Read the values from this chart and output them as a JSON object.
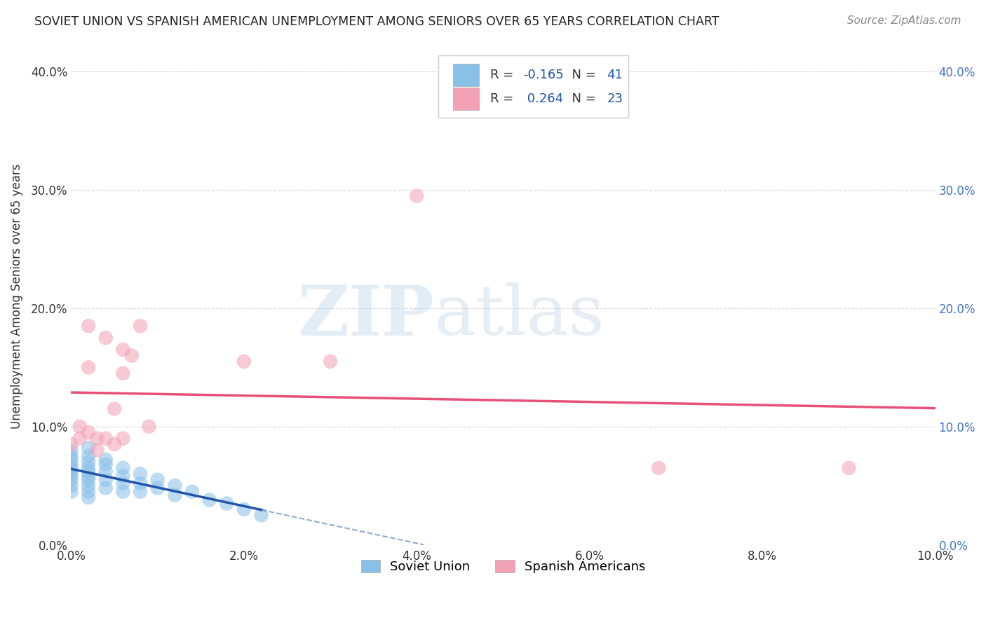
{
  "title": "SOVIET UNION VS SPANISH AMERICAN UNEMPLOYMENT AMONG SENIORS OVER 65 YEARS CORRELATION CHART",
  "source": "Source: ZipAtlas.com",
  "ylabel": "Unemployment Among Seniors over 65 years",
  "xlim": [
    0.0,
    0.1
  ],
  "ylim": [
    0.0,
    0.42
  ],
  "xticks": [
    0.0,
    0.02,
    0.04,
    0.06,
    0.08,
    0.1
  ],
  "yticks": [
    0.0,
    0.1,
    0.2,
    0.3,
    0.4
  ],
  "soviet_R": -0.165,
  "soviet_N": 41,
  "spanish_R": 0.264,
  "spanish_N": 23,
  "soviet_color": "#88c0e8",
  "spanish_color": "#f4a0b5",
  "soviet_line_color": "#2255aa",
  "spanish_line_color": "#e8507a",
  "soviet_scatter_x": [
    0.0,
    0.0,
    0.0,
    0.0,
    0.0,
    0.0,
    0.0,
    0.0,
    0.0,
    0.0,
    0.002,
    0.002,
    0.002,
    0.002,
    0.002,
    0.002,
    0.002,
    0.002,
    0.002,
    0.002,
    0.004,
    0.004,
    0.004,
    0.004,
    0.004,
    0.006,
    0.006,
    0.006,
    0.006,
    0.008,
    0.008,
    0.008,
    0.01,
    0.01,
    0.012,
    0.012,
    0.014,
    0.016,
    0.018,
    0.02,
    0.022
  ],
  "soviet_scatter_y": [
    0.08,
    0.075,
    0.072,
    0.068,
    0.065,
    0.062,
    0.058,
    0.055,
    0.05,
    0.045,
    0.082,
    0.075,
    0.07,
    0.065,
    0.062,
    0.058,
    0.055,
    0.05,
    0.045,
    0.04,
    0.072,
    0.068,
    0.062,
    0.055,
    0.048,
    0.065,
    0.058,
    0.052,
    0.045,
    0.06,
    0.052,
    0.045,
    0.055,
    0.048,
    0.05,
    0.042,
    0.045,
    0.038,
    0.035,
    0.03,
    0.025
  ],
  "spanish_scatter_x": [
    0.0,
    0.001,
    0.001,
    0.002,
    0.002,
    0.002,
    0.003,
    0.003,
    0.004,
    0.004,
    0.005,
    0.005,
    0.006,
    0.006,
    0.006,
    0.007,
    0.008,
    0.009,
    0.02,
    0.03,
    0.04,
    0.068,
    0.09
  ],
  "spanish_scatter_y": [
    0.085,
    0.1,
    0.09,
    0.185,
    0.15,
    0.095,
    0.09,
    0.08,
    0.175,
    0.09,
    0.115,
    0.085,
    0.165,
    0.145,
    0.09,
    0.16,
    0.185,
    0.1,
    0.155,
    0.155,
    0.295,
    0.065,
    0.065
  ],
  "background_color": "#ffffff",
  "grid_color": "#cccccc",
  "watermark_zip": "ZIP",
  "watermark_atlas": "atlas",
  "legend_labels": [
    "Soviet Union",
    "Spanish Americans"
  ]
}
